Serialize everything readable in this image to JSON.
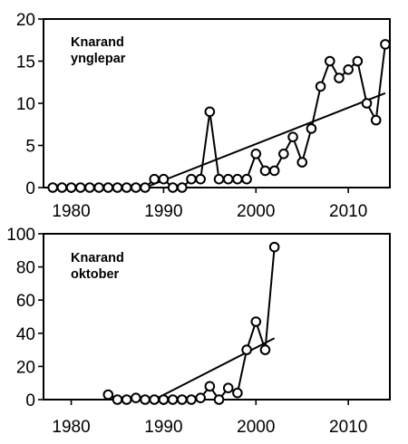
{
  "chart_data": [
    {
      "type": "scatter",
      "title_lines": [
        "Knarand",
        "ynglepar"
      ],
      "xlabel": "",
      "ylabel": "",
      "xlim": [
        1977,
        2014.5
      ],
      "ylim": [
        0,
        20
      ],
      "xticks": [
        1980,
        1990,
        2000,
        2010
      ],
      "yticks": [
        0,
        5,
        10,
        15,
        20
      ],
      "grid": false,
      "connected": true,
      "x": [
        1978,
        1979,
        1980,
        1981,
        1982,
        1983,
        1984,
        1985,
        1986,
        1987,
        1988,
        1989,
        1990,
        1991,
        1992,
        1993,
        1994,
        1995,
        1996,
        1997,
        1998,
        1999,
        2000,
        2001,
        2002,
        2003,
        2004,
        2005,
        2006,
        2007,
        2008,
        2009,
        2010,
        2011,
        2012,
        2013,
        2014
      ],
      "y": [
        0,
        0,
        0,
        0,
        0,
        0,
        0,
        0,
        0,
        0,
        0,
        1,
        1,
        0,
        0,
        1,
        1,
        9,
        1,
        1,
        1,
        1,
        4,
        2,
        2,
        4,
        6,
        3,
        7,
        12,
        15,
        13,
        14,
        15,
        10,
        8,
        17
      ],
      "trendline": {
        "x": [
          1988,
          2014
        ],
        "y": [
          0,
          11.2
        ]
      }
    },
    {
      "type": "scatter",
      "title_lines": [
        "Knarand",
        "oktober"
      ],
      "xlabel": "",
      "ylabel": "",
      "xlim": [
        1977,
        2014.5
      ],
      "ylim": [
        0,
        100
      ],
      "xticks": [
        1980,
        1990,
        2000,
        2010
      ],
      "yticks": [
        0,
        20,
        40,
        60,
        80,
        100
      ],
      "grid": false,
      "connected": true,
      "x": [
        1984,
        1985,
        1986,
        1987,
        1988,
        1989,
        1990,
        1991,
        1992,
        1993,
        1994,
        1995,
        1996,
        1997,
        1998,
        1999,
        2000,
        2001,
        2002
      ],
      "y": [
        3,
        0,
        0,
        1,
        0,
        0,
        0,
        0,
        0,
        0,
        1,
        8,
        0,
        7,
        4,
        30,
        47,
        30,
        92
      ],
      "trendline": {
        "x": [
          1989,
          2002
        ],
        "y": [
          0,
          37
        ]
      }
    }
  ]
}
